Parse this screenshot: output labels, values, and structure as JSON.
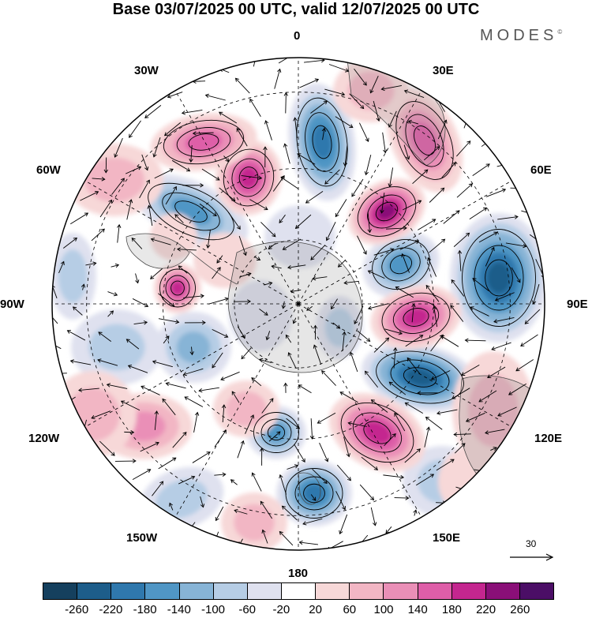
{
  "title": "Base 03/07/2025 00 UTC, valid 12/07/2025 00 UTC",
  "brand": "MODES",
  "brand_mark": "©",
  "longitude_labels": {
    "lon_0": "0",
    "lon_30e": "30E",
    "lon_60e": "60E",
    "lon_90e": "90E",
    "lon_120e": "120E",
    "lon_150e": "150E",
    "lon_180": "180",
    "lon_150w": "150W",
    "lon_120w": "120W",
    "lon_90w": "90W",
    "lon_60w": "60W",
    "lon_30w": "30W"
  },
  "vector_scale_label": "30",
  "colorbar": {
    "labels": [
      "-260",
      "-220",
      "-180",
      "-140",
      "-100",
      "-60",
      "-20",
      "20",
      "60",
      "100",
      "140",
      "180",
      "220",
      "260"
    ],
    "colors": [
      "#15405e",
      "#1d5d8a",
      "#2f78ad",
      "#5096c5",
      "#87b4d6",
      "#b6cde5",
      "#dfe1ef",
      "#ffffff",
      "#f7d8d8",
      "#f2b6c4",
      "#ea8fb7",
      "#de5ea8",
      "#c4268f",
      "#8a0f78",
      "#4b0e66"
    ]
  },
  "colors": {
    "coastline": "#4a4a4a",
    "land_shade": "#9a9a9a",
    "grid": "#000000",
    "contour": "#000000"
  }
}
